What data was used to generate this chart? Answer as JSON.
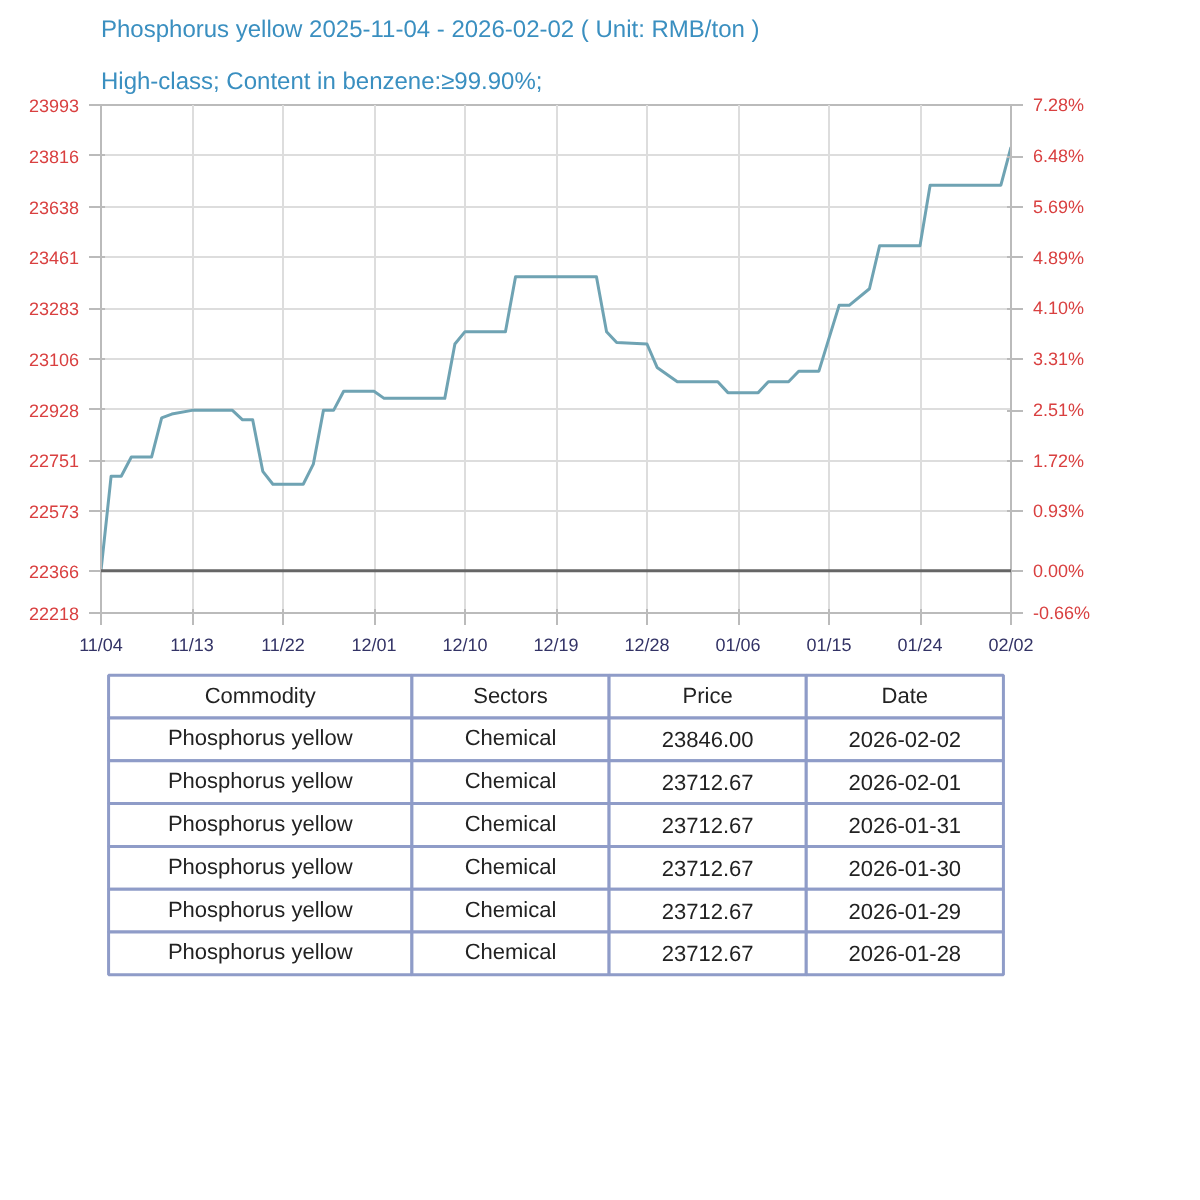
{
  "chart_data": [
    {
      "type": "line",
      "title": "Phosphorus yellow 2025-11-04 - 2026-02-02    ( Unit: RMB/ton )",
      "subtitle": "High-class; Content in benzene:≥99.90%;",
      "x": [
        "2025-11-04",
        "2025-11-05",
        "2025-11-06",
        "2025-11-07",
        "2025-11-09",
        "2025-11-10",
        "2025-11-11",
        "2025-11-13",
        "2025-11-17",
        "2025-11-18",
        "2025-11-19",
        "2025-11-20",
        "2025-11-21",
        "2025-11-24",
        "2025-11-25",
        "2025-11-26",
        "2025-11-27",
        "2025-11-28",
        "2025-12-01",
        "2025-12-02",
        "2025-12-08",
        "2025-12-09",
        "2025-12-10",
        "2025-12-14",
        "2025-12-15",
        "2025-12-23",
        "2025-12-24",
        "2025-12-25",
        "2025-12-28",
        "2025-12-29",
        "2025-12-31",
        "2026-01-04",
        "2026-01-05",
        "2026-01-08",
        "2026-01-09",
        "2026-01-11",
        "2026-01-12",
        "2026-01-14",
        "2026-01-16",
        "2026-01-17",
        "2026-01-19",
        "2026-01-20",
        "2026-01-24",
        "2026-01-25",
        "2026-01-28",
        "2026-01-29",
        "2026-01-30",
        "2026-01-31",
        "2026-02-01",
        "2026-02-02"
      ],
      "series": [
        {
          "color": "#6fa3b3",
          "values": [
            22366,
            22696,
            22696,
            22763,
            22763,
            22900,
            22913,
            22926,
            22926,
            22893,
            22893,
            22713,
            22668,
            22668,
            22738,
            22926,
            22926,
            22993,
            22993,
            22968,
            22968,
            23158,
            23201,
            23201,
            23393,
            23393,
            23201,
            23163,
            23158,
            23076,
            23026,
            23026,
            22988,
            22988,
            23026,
            23026,
            23063,
            23063,
            23293,
            23293,
            23351,
            23501,
            23501,
            23712.67,
            23712.67,
            23712.67,
            23712.67,
            23712.67,
            23712.67,
            23846
          ]
        }
      ],
      "xlim": [
        "2025-11-04",
        "2026-02-02"
      ],
      "xticks": [
        {
          "value": "2025-11-04",
          "label": "11/04"
        },
        {
          "value": "2025-11-13",
          "label": "11/13"
        },
        {
          "value": "2025-11-22",
          "label": "11/22"
        },
        {
          "value": "2025-12-01",
          "label": "12/01"
        },
        {
          "value": "2025-12-10",
          "label": "12/10"
        },
        {
          "value": "2025-12-19",
          "label": "12/19"
        },
        {
          "value": "2025-12-28",
          "label": "12/28"
        },
        {
          "value": "2026-01-06",
          "label": "01/06"
        },
        {
          "value": "2026-01-15",
          "label": "01/15"
        },
        {
          "value": "2026-01-24",
          "label": "01/24"
        },
        {
          "value": "2026-02-02",
          "label": "02/02"
        }
      ],
      "ylim": [
        22218,
        23993
      ],
      "yticks": [
        22218,
        22366,
        22573,
        22751,
        22928,
        23106,
        23283,
        23461,
        23638,
        23816,
        23993
      ],
      "y2lim": [
        -0.66,
        7.28
      ],
      "y2ticks": [
        {
          "value": -0.66,
          "label": "-0.66%"
        },
        {
          "value": 0,
          "label": "0.00%"
        },
        {
          "value": 0.93,
          "label": "0.93%"
        },
        {
          "value": 1.72,
          "label": "1.72%"
        },
        {
          "value": 2.51,
          "label": "2.51%"
        },
        {
          "value": 3.31,
          "label": "3.31%"
        },
        {
          "value": 4.1,
          "label": "4.10%"
        },
        {
          "value": 4.89,
          "label": "4.89%"
        },
        {
          "value": 5.69,
          "label": "5.69%"
        },
        {
          "value": 6.48,
          "label": "6.48%"
        },
        {
          "value": 7.28,
          "label": "7.28%"
        }
      ],
      "ref_lines": [
        {
          "axis": "y",
          "value": 22366,
          "color": "#666666"
        }
      ],
      "grid": true
    },
    {
      "type": "other",
      "annotations": [
        "Commodity",
        "Sectors",
        "Price",
        "Date",
        "Phosphorus yellow",
        "Chemical",
        "23846.00",
        "2026-02-02",
        "Phosphorus yellow",
        "Chemical",
        "23712.67",
        "2026-02-01",
        "Phosphorus yellow",
        "Chemical",
        "23712.67",
        "2026-01-31",
        "Phosphorus yellow",
        "Chemical",
        "23712.67",
        "2026-01-30",
        "Phosphorus yellow",
        "Chemical",
        "23712.67",
        "2026-01-29",
        "Phosphorus yellow",
        "Chemical",
        "23712.67",
        "2026-01-28"
      ]
    }
  ]
}
